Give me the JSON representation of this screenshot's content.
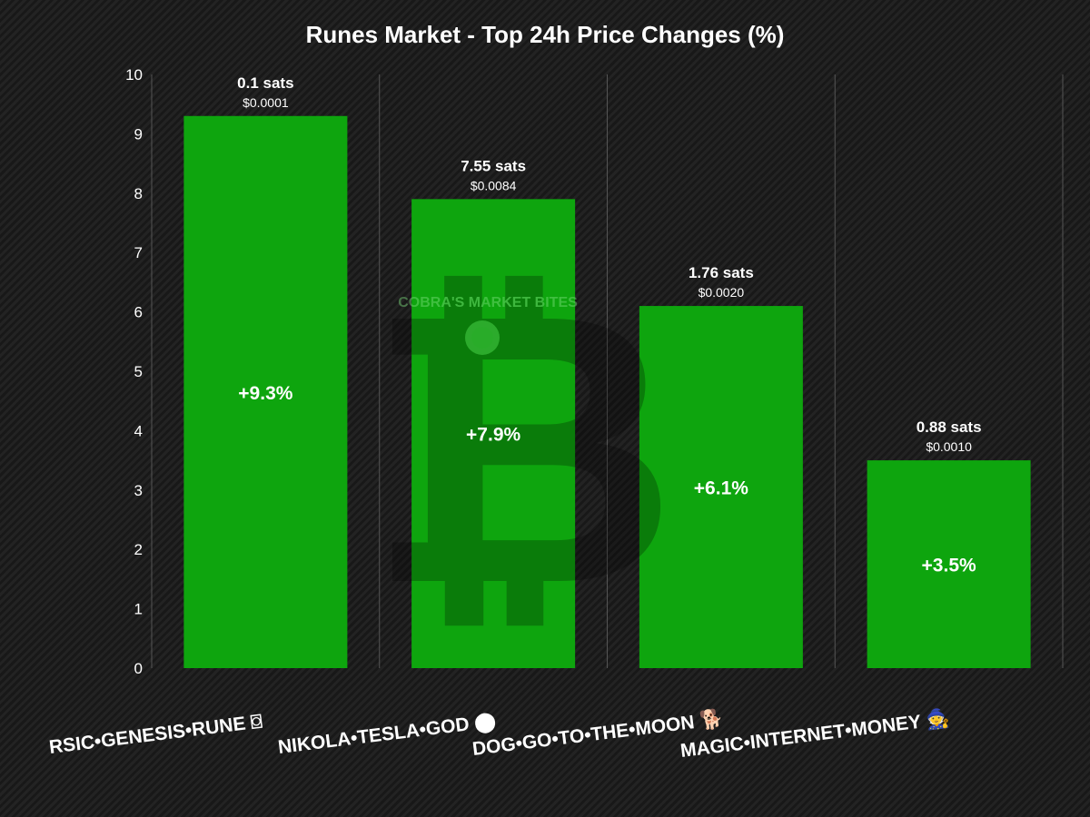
{
  "chart_data": {
    "type": "bar",
    "title": "Runes Market - Top 24h Price Changes (%)",
    "xlabel": "",
    "ylabel": "",
    "ylim": [
      0,
      10
    ],
    "yticks": [
      0,
      1,
      2,
      3,
      4,
      5,
      6,
      7,
      8,
      9,
      10
    ],
    "grid": {
      "vertical": true,
      "horizontal": false
    },
    "bar_color": "#0ea50e",
    "categories": [
      "RSIC•GENESIS•RUNE ⌼",
      "NIKOLA•TESLA•GOD ⬤",
      "DOG•GO•TO•THE•MOON 🐕",
      "MAGIC•INTERNET•MONEY 🧙"
    ],
    "values": [
      9.3,
      7.9,
      6.1,
      3.5
    ],
    "value_labels": [
      "+9.3%",
      "+7.9%",
      "+6.1%",
      "+3.5%"
    ],
    "price_sats": [
      "0.1 sats",
      "7.55 sats",
      "1.76 sats",
      "0.88 sats"
    ],
    "price_usd": [
      "$0.0001",
      "$0.0084",
      "$0.0020",
      "$0.0010"
    ]
  },
  "watermark": {
    "text": "COBRA'S MARKET BITES",
    "icon": "bitcoin-logo-icon"
  }
}
